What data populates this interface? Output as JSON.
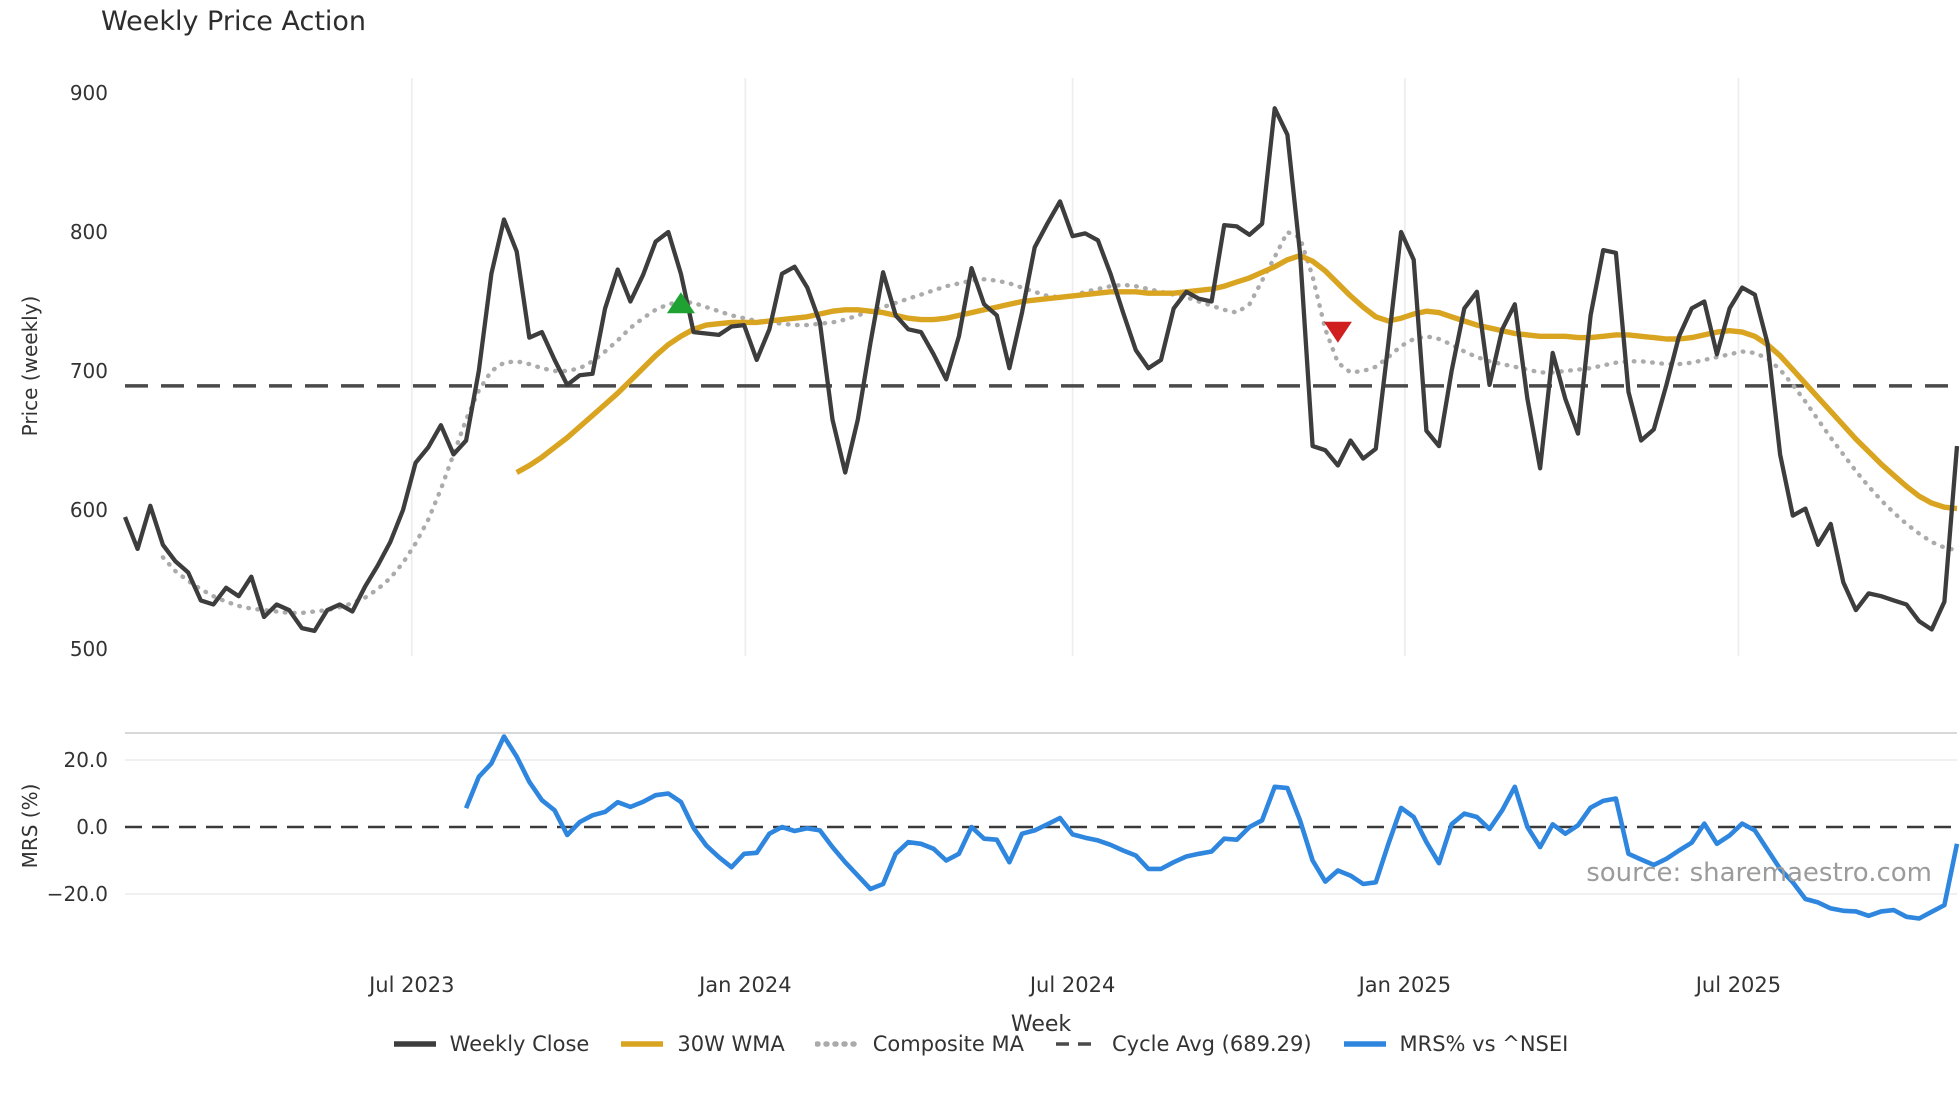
{
  "header": {
    "title": "Weekly Price Action"
  },
  "watermark": "source: sharemaestro.com",
  "axes": {
    "price": {
      "label": "Price (weekly)",
      "ticks": [
        "900",
        "800",
        "700",
        "600",
        "500"
      ],
      "tick_values": [
        900,
        800,
        700,
        600,
        500
      ]
    },
    "mrs": {
      "label": "MRS (%)",
      "ticks": [
        "20.0",
        "0.0",
        "−20.0"
      ],
      "tick_values": [
        20,
        0,
        -20
      ]
    },
    "x": {
      "label": "Week",
      "ticks": [
        "Jul 2023",
        "Jan 2024",
        "Jul 2024",
        "Jan 2025",
        "Jul 2025"
      ]
    }
  },
  "legend": [
    {
      "label": "Weekly Close",
      "style": "solid",
      "color": "#3d3d3d"
    },
    {
      "label": "30W WMA",
      "style": "solid",
      "color": "#d9a420"
    },
    {
      "label": "Composite MA",
      "style": "dotted",
      "color": "#ababab"
    },
    {
      "label": "Cycle Avg (689.29)",
      "style": "dashed",
      "color": "#4a4a4a"
    },
    {
      "label": "MRS% vs ^NSEI",
      "style": "solid",
      "color": "#2e86de"
    }
  ],
  "colors": {
    "weekly_close": "#3d3d3d",
    "wma_30w": "#d9a420",
    "composite_ma": "#ababab",
    "cycle_avg": "#4a4a4a",
    "mrs": "#2e86de",
    "grid": "#ededf2",
    "mrs_grid": "#ececec",
    "mrs_top_border": "#cccccc",
    "zero_dash": "#3a3a3a",
    "marker_up": "#1fa232",
    "marker_down": "#cf1f1f",
    "text": "#333333",
    "watermark": "#9b9b9b"
  },
  "chart_data": [
    {
      "type": "line",
      "panel": "price",
      "title": "Weekly Price Action",
      "ylabel": "Price (weekly)",
      "ylim": [
        492,
        909
      ],
      "x_unit": "week_index",
      "n_weeks": 146,
      "x_range_note": "weekly points, ~Jan 2023 to ~Nov 2025",
      "x_tick_labels": [
        "Jul 2023",
        "Jan 2024",
        "Jul 2024",
        "Jan 2025",
        "Jul 2025"
      ],
      "x_tick_weeks": [
        22.7,
        49.1,
        75.0,
        101.3,
        127.7
      ],
      "grid": "vertical-only",
      "cycle_avg": 689.29,
      "legend_position": "bottom-center",
      "series": [
        {
          "name": "Weekly Close",
          "color": "#3d3d3d",
          "style": "solid",
          "values": [
            595,
            572,
            603,
            575,
            563,
            555,
            535,
            532,
            544,
            538,
            552,
            523,
            532,
            528,
            515,
            513,
            528,
            532,
            527,
            545,
            560,
            577,
            600,
            634,
            645,
            661,
            640,
            650,
            700,
            770,
            809,
            786,
            724,
            728,
            708,
            690,
            697,
            698,
            745,
            773,
            750,
            769,
            793,
            800,
            770,
            728,
            727,
            726,
            732,
            733,
            708,
            730,
            770,
            775,
            760,
            735,
            665,
            627,
            665,
            720,
            771,
            740,
            730,
            728,
            712,
            694,
            725,
            774,
            748,
            740,
            702,
            742,
            789,
            806,
            822,
            797,
            799,
            794,
            770,
            742,
            715,
            702,
            708,
            745,
            757,
            752,
            750,
            805,
            804,
            798,
            806,
            889,
            870,
            785,
            646,
            643,
            632,
            650,
            637,
            644,
            720,
            800,
            780,
            657,
            646,
            700,
            745,
            757,
            690,
            730,
            748,
            680,
            630,
            713,
            680,
            655,
            740,
            787,
            785,
            685,
            650,
            658,
            690,
            725,
            745,
            750,
            712,
            745,
            760,
            755,
            720,
            640,
            596,
            601,
            575,
            590,
            548,
            528,
            540,
            538,
            535,
            532,
            520,
            514,
            534,
            646
          ]
        },
        {
          "name": "30W WMA",
          "color": "#d9a420",
          "style": "solid",
          "values": [
            null,
            null,
            null,
            null,
            null,
            null,
            null,
            null,
            null,
            null,
            null,
            null,
            null,
            null,
            null,
            null,
            null,
            null,
            null,
            null,
            null,
            null,
            null,
            null,
            null,
            null,
            null,
            null,
            null,
            null,
            null,
            627,
            632,
            638,
            645,
            652,
            660,
            668,
            676,
            684,
            693,
            702,
            711,
            719,
            725,
            730,
            733,
            734,
            735,
            735,
            735,
            736,
            737,
            738,
            739,
            741,
            743,
            744,
            744,
            743,
            742,
            740,
            738,
            737,
            737,
            738,
            740,
            742,
            744,
            746,
            748,
            750,
            751,
            752,
            753,
            754,
            755,
            756,
            757,
            757,
            757,
            756,
            756,
            756,
            757,
            758,
            759,
            761,
            764,
            767,
            771,
            775,
            780,
            783,
            779,
            772,
            763,
            754,
            746,
            739,
            736,
            738,
            741,
            743,
            742,
            739,
            736,
            733,
            731,
            729,
            727,
            726,
            725,
            725,
            725,
            724,
            724,
            725,
            726,
            726,
            725,
            724,
            723,
            723,
            724,
            726,
            728,
            729,
            728,
            725,
            719,
            711,
            701,
            691,
            681,
            671,
            661,
            651,
            642,
            633,
            625,
            617,
            610,
            605,
            602,
            601
          ]
        },
        {
          "name": "Composite MA",
          "color": "#ababab",
          "style": "dotted",
          "values": [
            null,
            null,
            null,
            566,
            556,
            549,
            543,
            538,
            534,
            531,
            529,
            528,
            527,
            526,
            526,
            527,
            528,
            530,
            533,
            537,
            543,
            551,
            562,
            576,
            593,
            615,
            640,
            665,
            686,
            700,
            706,
            707,
            705,
            702,
            700,
            700,
            702,
            707,
            714,
            722,
            731,
            738,
            744,
            748,
            750,
            749,
            746,
            743,
            740,
            738,
            736,
            735,
            734,
            733,
            733,
            734,
            735,
            737,
            740,
            743,
            746,
            749,
            752,
            755,
            758,
            761,
            763,
            765,
            766,
            765,
            763,
            760,
            757,
            754,
            753,
            754,
            757,
            759,
            761,
            762,
            761,
            759,
            757,
            755,
            753,
            750,
            747,
            744,
            742,
            748,
            765,
            782,
            800,
            796,
            768,
            730,
            706,
            699,
            700,
            703,
            710,
            718,
            723,
            725,
            723,
            719,
            714,
            710,
            707,
            705,
            703,
            701,
            699,
            699,
            700,
            701,
            702,
            704,
            706,
            707,
            707,
            706,
            705,
            705,
            706,
            708,
            710,
            712,
            714,
            713,
            709,
            701,
            690,
            678,
            665,
            652,
            640,
            628,
            617,
            607,
            598,
            590,
            583,
            577,
            573,
            571
          ]
        }
      ],
      "markers": [
        {
          "shape": "triangle-up",
          "color": "#1fa232",
          "week": 44,
          "value": 748
        },
        {
          "shape": "triangle-down",
          "color": "#cf1f1f",
          "week": 96,
          "value": 729
        }
      ]
    },
    {
      "type": "line",
      "panel": "mrs",
      "ylabel": "MRS (%)",
      "ylim": [
        -30.5,
        28
      ],
      "zero_line": 0,
      "grid": "horizontal-only",
      "series": [
        {
          "name": "MRS% vs ^NSEI",
          "color": "#2e86de",
          "style": "solid",
          "values": [
            null,
            null,
            null,
            null,
            null,
            null,
            null,
            null,
            null,
            null,
            null,
            null,
            null,
            null,
            null,
            null,
            null,
            null,
            null,
            null,
            null,
            null,
            null,
            null,
            null,
            null,
            null,
            5.6,
            15,
            19,
            27,
            21,
            13.5,
            8,
            5,
            -2.4,
            1.5,
            3.5,
            4.5,
            7.4,
            6,
            7.5,
            9.5,
            10,
            7.5,
            -0.3,
            -5.5,
            -9,
            -12,
            -8,
            -7.7,
            -2,
            0,
            -1.2,
            -0.4,
            -1,
            -6,
            -10.5,
            -14.5,
            -18.5,
            -17,
            -8,
            -4.5,
            -5,
            -6.5,
            -10,
            -8,
            0,
            -3.5,
            -3.8,
            -10.5,
            -2,
            -1,
            0.8,
            2.7,
            -2.2,
            -3.2,
            -4,
            -5.3,
            -7,
            -8.5,
            -12.5,
            -12.5,
            -10.5,
            -8.8,
            -8,
            -7.3,
            -3.5,
            -3.8,
            0,
            2,
            12,
            11.6,
            2,
            -10,
            -16.3,
            -13,
            -14.5,
            -17,
            -16.5,
            -5,
            5.7,
            3,
            -4.5,
            -10.8,
            0.8,
            4,
            3,
            -0.6,
            5,
            12,
            0,
            -6,
            0.8,
            -2,
            0.5,
            5.8,
            7.8,
            8.5,
            -8,
            -9.7,
            -11.3,
            -9.5,
            -7,
            -4.7,
            1,
            -5,
            -2.5,
            1,
            -1,
            -6.8,
            -12.5,
            -16.5,
            -21.5,
            -22.5,
            -24.3,
            -25,
            -25.2,
            -26.5,
            -25.2,
            -24.8,
            -26.8,
            -27.3,
            -25.3,
            -23.3,
            -5
          ]
        }
      ]
    }
  ]
}
